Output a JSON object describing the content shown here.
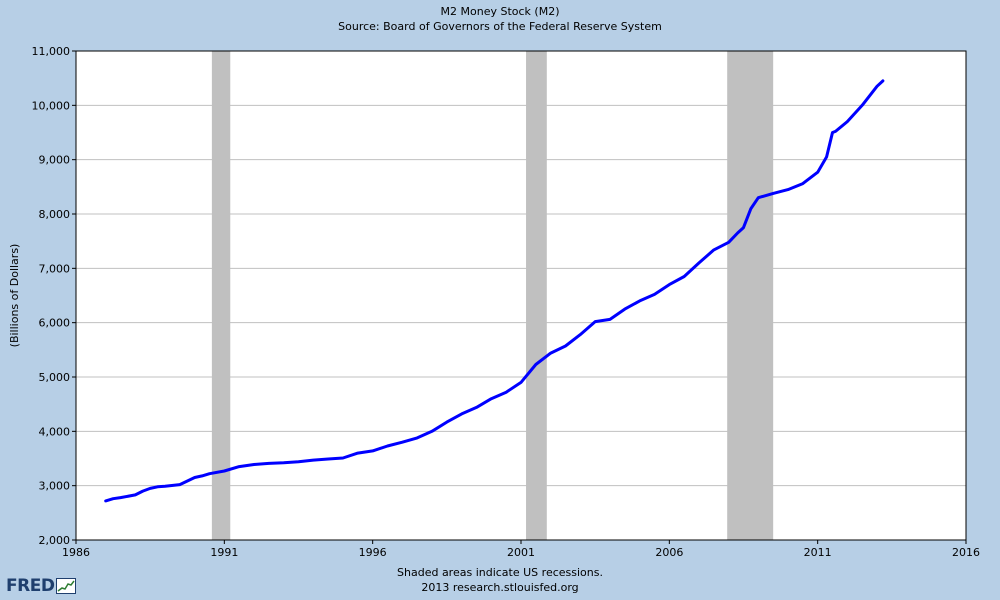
{
  "chart_data": {
    "type": "line",
    "title": "M2 Money Stock (M2)",
    "subtitle": "Source: Board of Governors of the Federal Reserve System",
    "ylabel": "(Billions of Dollars)",
    "xlabel": "",
    "xlim": [
      1986,
      2016
    ],
    "ylim": [
      2000,
      11000
    ],
    "x_ticks": [
      1986,
      1991,
      1996,
      2001,
      2006,
      2011,
      2016
    ],
    "x_tick_labels": [
      "1986",
      "1991",
      "1996",
      "2001",
      "2006",
      "2011",
      "2016"
    ],
    "y_ticks": [
      2000,
      3000,
      4000,
      5000,
      6000,
      7000,
      8000,
      9000,
      10000,
      11000
    ],
    "y_tick_labels": [
      "2,000",
      "3,000",
      "4,000",
      "5,000",
      "6,000",
      "7,000",
      "8,000",
      "9,000",
      "10,000",
      "11,000"
    ],
    "grid": "horizontal",
    "recessions": [
      [
        1990.58,
        1991.2
      ],
      [
        2001.17,
        2001.87
      ],
      [
        2007.95,
        2009.5
      ]
    ],
    "series": [
      {
        "color": "#0000ff",
        "x": [
          1987.0,
          1987.25,
          1987.5,
          1988.0,
          1988.25,
          1988.5,
          1988.75,
          1989.0,
          1989.5,
          1990.0,
          1990.25,
          1990.5,
          1991.0,
          1991.5,
          1992.0,
          1992.5,
          1993.0,
          1993.5,
          1994.0,
          1994.5,
          1995.0,
          1995.5,
          1996.0,
          1996.5,
          1997.0,
          1997.5,
          1998.0,
          1998.5,
          1999.0,
          1999.5,
          2000.0,
          2000.5,
          2001.0,
          2001.5,
          2002.0,
          2002.5,
          2003.0,
          2003.5,
          2004.0,
          2004.5,
          2005.0,
          2005.5,
          2006.0,
          2006.5,
          2007.0,
          2007.5,
          2008.0,
          2008.3,
          2008.5,
          2008.75,
          2009.0,
          2009.5,
          2010.0,
          2010.5,
          2011.0,
          2011.3,
          2011.5,
          2011.6,
          2012.0,
          2012.5,
          2013.0,
          2013.2
        ],
        "y": [
          2720,
          2760,
          2780,
          2830,
          2900,
          2950,
          2980,
          2990,
          3020,
          3150,
          3180,
          3220,
          3270,
          3350,
          3390,
          3410,
          3420,
          3440,
          3470,
          3490,
          3510,
          3600,
          3640,
          3730,
          3800,
          3880,
          4000,
          4170,
          4320,
          4440,
          4600,
          4720,
          4900,
          5230,
          5440,
          5570,
          5780,
          6020,
          6060,
          6250,
          6400,
          6520,
          6700,
          6850,
          7100,
          7340,
          7480,
          7650,
          7750,
          8100,
          8300,
          8380,
          8450,
          8560,
          8770,
          9050,
          9500,
          9520,
          9700,
          10000,
          10350,
          10450
        ]
      }
    ]
  },
  "footer": {
    "line1": "Shaded areas indicate US recessions.",
    "line2": "2013 research.stlouisfed.org"
  },
  "logo": {
    "text": "FRED"
  },
  "colors": {
    "background": "#b7cfe6",
    "plot": "#ffffff",
    "grid": "#c0c0c0",
    "recession": "#c0c0c0",
    "line": "#0000ff"
  }
}
